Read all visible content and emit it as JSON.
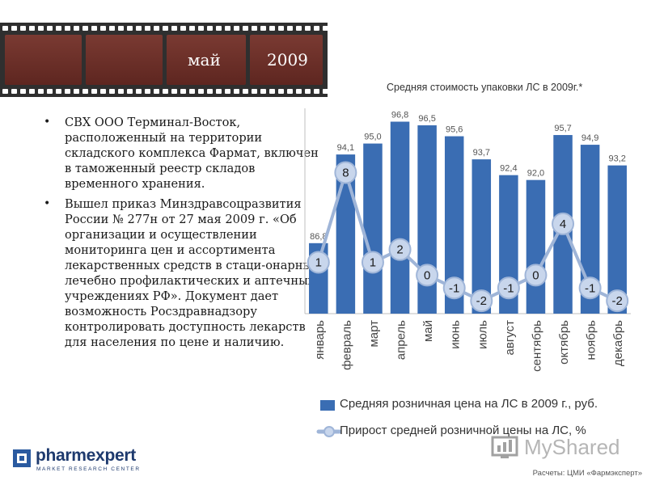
{
  "header": {
    "month": "май",
    "year": "2009"
  },
  "bullets": [
    "СВХ ООО Терминал-Восток, расположенный на территории складского комплекса Фармат, включен в таможенный реестр складов временного хранения.",
    "Вышел приказ Минздравсоцразвития России № 277н от 27 мая 2009 г. «Об организации и осуществлении мониторинга цен и ассортимента лекарственных средств в стаци-онарных лечебно профилактических и аптечных учреждениях РФ». Документ дает возможность Росздравнадзору контролировать доступность лекарств для населения по цене и наличию."
  ],
  "chart_data": {
    "type": "bar",
    "title": "Средняя стоимость упаковки ЛС в 2009г.*",
    "categories": [
      "январь",
      "февраль",
      "март",
      "апрель",
      "май",
      "июнь",
      "июль",
      "август",
      "сентябрь",
      "октябрь",
      "ноябрь",
      "декабрь"
    ],
    "series": [
      {
        "name": "Средняя розничная цена на ЛС в 2009 г., руб.",
        "kind": "bar",
        "values": [
          86.8,
          94.1,
          95.0,
          96.8,
          96.5,
          95.6,
          93.7,
          92.4,
          92.0,
          95.7,
          94.9,
          93.2
        ],
        "labels": [
          "86,8",
          "94,1",
          "95,0",
          "96,8",
          "96,5",
          "95,6",
          "93,7",
          "92,4",
          "92,0",
          "95,7",
          "94,9",
          "93,2"
        ]
      },
      {
        "name": "Прирост средней розничной цены на ЛС, %",
        "kind": "line",
        "values": [
          1,
          8,
          1,
          2,
          0,
          -1,
          -2,
          -1,
          0,
          4,
          -1,
          -2
        ],
        "labels": [
          "1",
          "8",
          "1",
          "2",
          "0",
          "-1",
          "-2",
          "-1",
          "0",
          "4",
          "-1",
          "-2"
        ]
      }
    ],
    "bar_ylim": [
      81,
      97.5
    ],
    "line_ylim": [
      -3,
      12
    ],
    "bar_color": "#3a6db3",
    "line_color": "#9fb5d8",
    "grid": false,
    "legend": "bottom"
  },
  "logo": {
    "name": "pharmexpert",
    "subtitle": "MARKET RESEARCH CENTER"
  },
  "watermark": "MyShared",
  "source": "Расчеты: ЦМИ «Фармэксперт»"
}
